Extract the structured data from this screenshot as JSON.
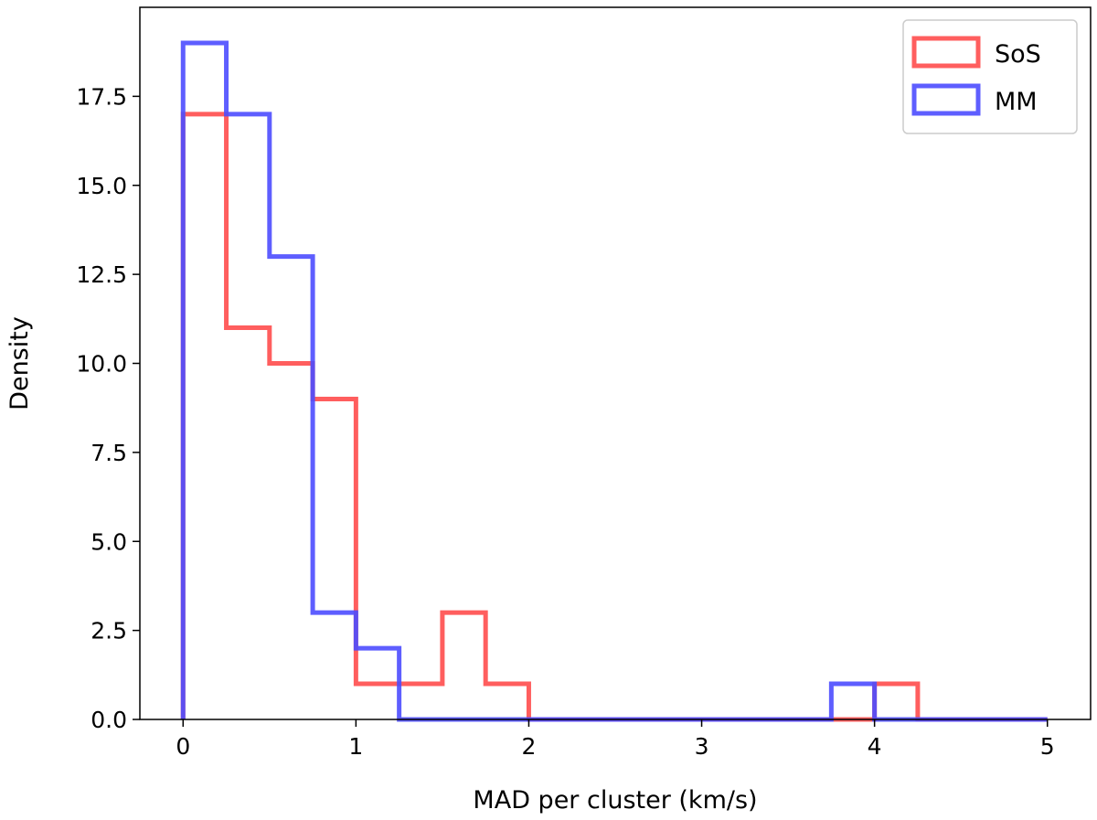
{
  "chart_data": {
    "type": "histogram-step",
    "title": "",
    "xlabel": "MAD per cluster (km/s)",
    "ylabel": "Density",
    "xlim": [
      -0.25,
      5.25
    ],
    "ylim": [
      0,
      20
    ],
    "xticks": [
      0,
      1,
      2,
      3,
      4,
      5
    ],
    "xtick_labels": [
      "0",
      "1",
      "2",
      "3",
      "4",
      "5"
    ],
    "yticks": [
      0,
      2.5,
      5,
      7.5,
      10,
      12.5,
      15,
      17.5
    ],
    "ytick_labels": [
      "0.0",
      "2.5",
      "5.0",
      "7.5",
      "10.0",
      "12.5",
      "15.0",
      "17.5"
    ],
    "bin_edges": [
      0,
      0.25,
      0.5,
      0.75,
      1.0,
      1.25,
      1.5,
      1.75,
      2.0,
      2.25,
      2.5,
      2.75,
      3.0,
      3.25,
      3.5,
      3.75,
      4.0,
      4.25,
      4.5,
      4.75,
      5.0
    ],
    "series": [
      {
        "name": "SoS",
        "color": "#ff4d4d",
        "values": [
          17,
          11,
          10,
          9,
          1,
          1,
          3,
          1,
          0,
          0,
          0,
          0,
          0,
          0,
          0,
          0,
          1,
          0,
          0,
          0
        ]
      },
      {
        "name": "MM",
        "color": "#4d4dff",
        "values": [
          19,
          17,
          13,
          3,
          2,
          0,
          0,
          0,
          0,
          0,
          0,
          0,
          0,
          0,
          0,
          1,
          0,
          0,
          0,
          0
        ]
      }
    ],
    "grid": false,
    "legend_position": "top-right"
  }
}
